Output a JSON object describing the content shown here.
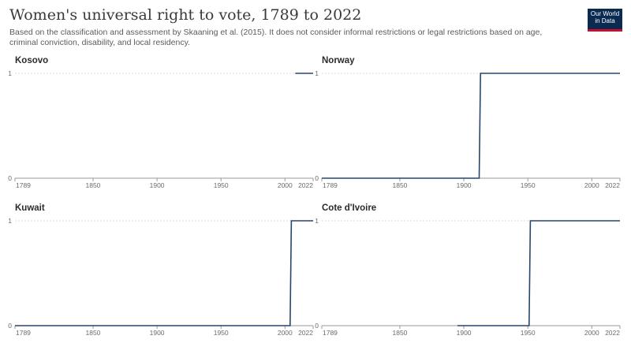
{
  "title": "Women's universal right to vote, 1789 to 2022",
  "subtitle": "Based on the classification and assessment by Skaaning et al. (2015). It does not consider informal restrictions or legal restrictions based on age, criminal conviction, disability, and local residency.",
  "logo": {
    "line1": "Our World",
    "line2": "in Data"
  },
  "colors": {
    "line": "#27466d",
    "grid": "#dddddd",
    "axis": "#999999"
  },
  "chart_data": [
    {
      "type": "line",
      "title": "Kosovo",
      "xlim": [
        1789,
        2022
      ],
      "ylim": [
        0,
        1
      ],
      "x_ticks": [
        1789,
        1850,
        1900,
        1950,
        2000,
        2022
      ],
      "y_ticks": [
        0,
        1
      ],
      "series": [
        {
          "x": [
            2008,
            2022
          ],
          "y": [
            1,
            1
          ]
        }
      ]
    },
    {
      "type": "line",
      "title": "Norway",
      "xlim": [
        1789,
        2022
      ],
      "ylim": [
        0,
        1
      ],
      "x_ticks": [
        1789,
        1850,
        1900,
        1950,
        2000,
        2022
      ],
      "y_ticks": [
        0,
        1
      ],
      "series": [
        {
          "x": [
            1789,
            1912,
            1913,
            2022
          ],
          "y": [
            0,
            0,
            1,
            1
          ]
        }
      ]
    },
    {
      "type": "line",
      "title": "Kuwait",
      "xlim": [
        1789,
        2022
      ],
      "ylim": [
        0,
        1
      ],
      "x_ticks": [
        1789,
        1850,
        1900,
        1950,
        2000,
        2022
      ],
      "y_ticks": [
        0,
        1
      ],
      "series": [
        {
          "x": [
            1789,
            2004,
            2005,
            2022
          ],
          "y": [
            0,
            0,
            1,
            1
          ]
        }
      ]
    },
    {
      "type": "line",
      "title": "Cote d'Ivoire",
      "xlim": [
        1789,
        2022
      ],
      "ylim": [
        0,
        1
      ],
      "x_ticks": [
        1789,
        1850,
        1900,
        1950,
        2000,
        2022
      ],
      "y_ticks": [
        0,
        1
      ],
      "series": [
        {
          "x": [
            1895,
            1951,
            1952,
            2022
          ],
          "y": [
            0,
            0,
            1,
            1
          ]
        }
      ]
    }
  ]
}
